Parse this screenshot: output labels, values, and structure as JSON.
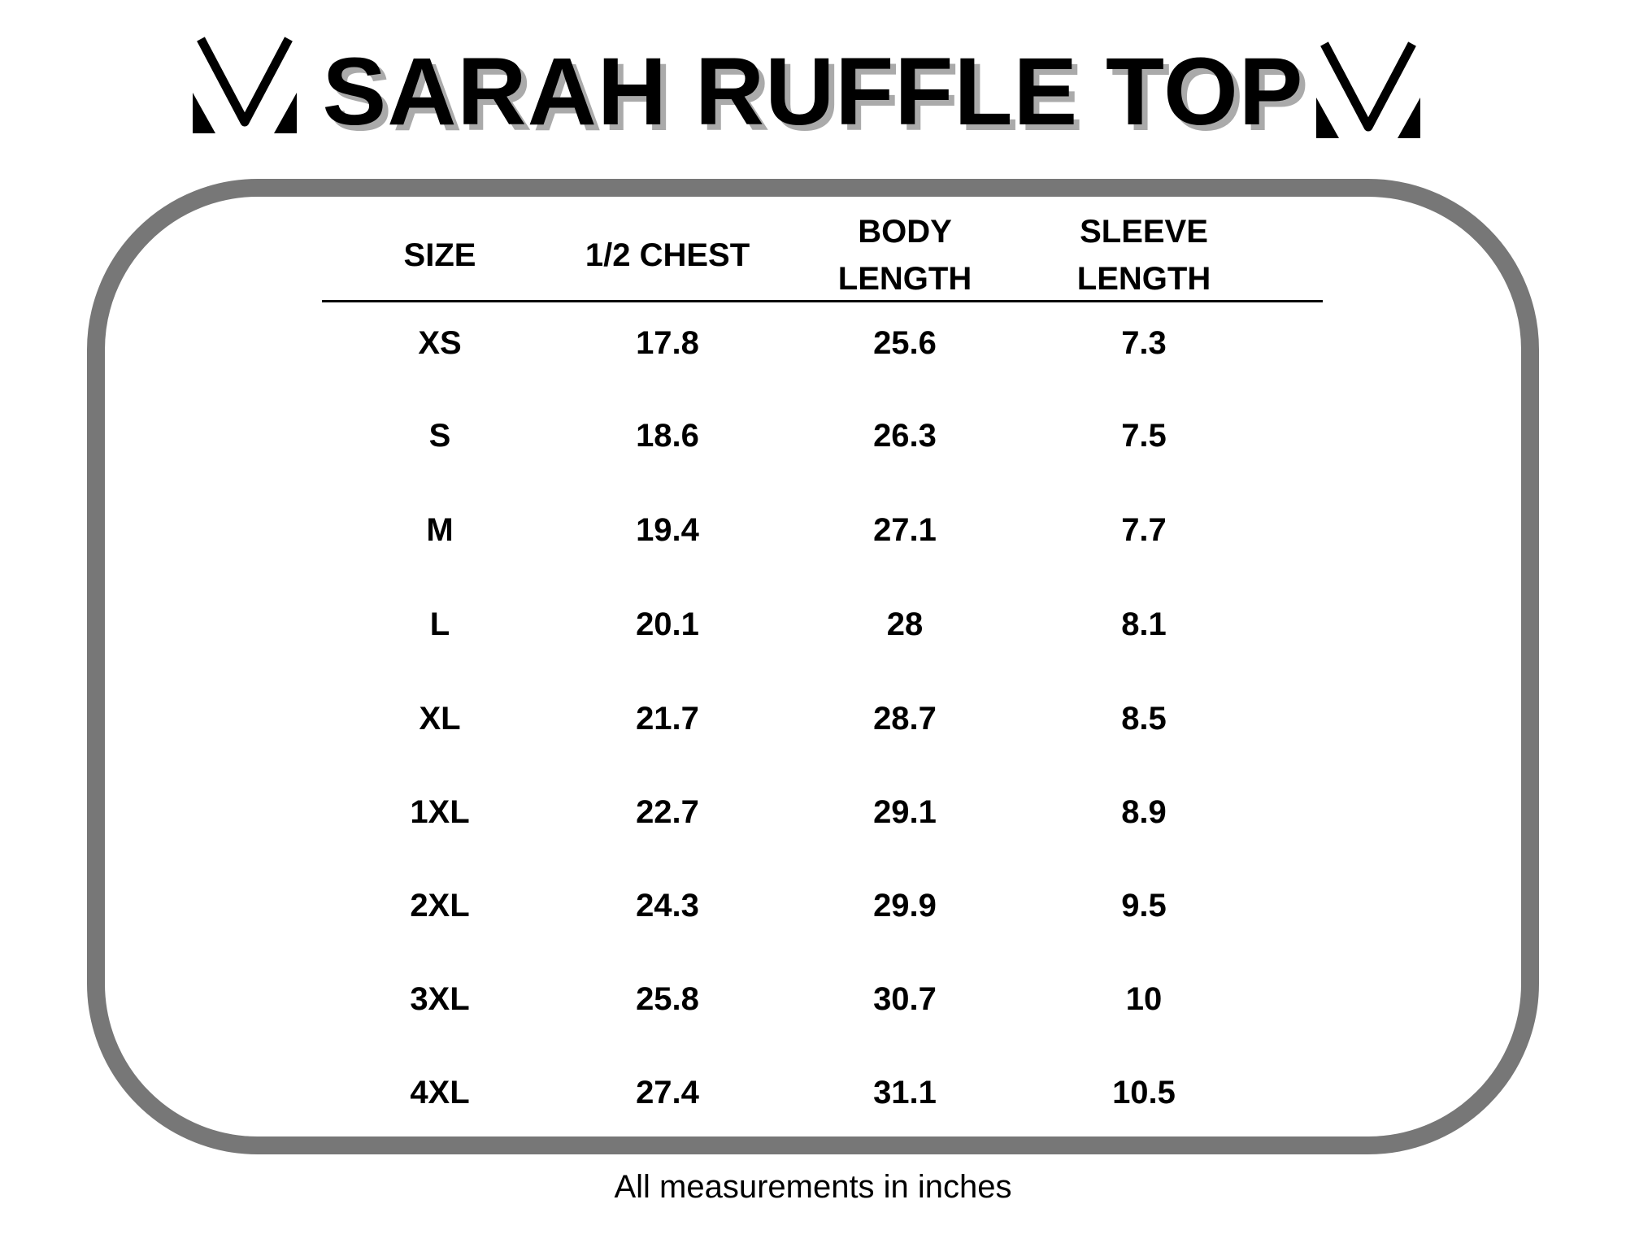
{
  "title": "SARAH RUFFLE TOP",
  "logo_icon": "v-chevron-logo",
  "border_color": "#777777",
  "headers": {
    "size": "SIZE",
    "chest": "1/2 CHEST",
    "body_1": "BODY",
    "body_2": "LENGTH",
    "sleeve_1": "SLEEVE",
    "sleeve_2": "LENGTH"
  },
  "rows": [
    [
      "XS",
      "17.8",
      "25.6",
      "7.3"
    ],
    [
      "S",
      "18.6",
      "26.3",
      "7.5"
    ],
    [
      "M",
      "19.4",
      "27.1",
      "7.7"
    ],
    [
      "L",
      "20.1",
      "28",
      "8.1"
    ],
    [
      "XL",
      "21.7",
      "28.7",
      "8.5"
    ],
    [
      "1XL",
      "22.7",
      "29.1",
      "8.9"
    ],
    [
      "2XL",
      "24.3",
      "29.9",
      "9.5"
    ],
    [
      "3XL",
      "25.8",
      "30.7",
      "10"
    ],
    [
      "4XL",
      "27.4",
      "31.1",
      "10.5"
    ]
  ],
  "footer": "All measurements in inches"
}
